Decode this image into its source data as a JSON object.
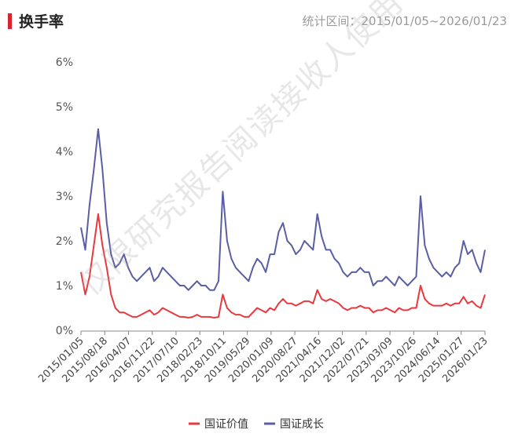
{
  "header": {
    "title": "换手率",
    "range": "统计区间：2015/01/05~2026/01/23"
  },
  "watermark": "仅限研究报告阅读接收人使用",
  "chart_data": {
    "type": "line",
    "title": "换手率",
    "xlabel": "",
    "ylabel": "",
    "ylim": [
      0,
      6
    ],
    "y_ticks": [
      "0%",
      "1%",
      "2%",
      "3%",
      "4%",
      "5%",
      "6%"
    ],
    "grid": false,
    "legend_position": "bottom",
    "x_tick_labels": [
      "2015/01/05",
      "2015/08/18",
      "2016/04/07",
      "2016/11/22",
      "2017/07/10",
      "2018/02/23",
      "2018/10/11",
      "2019/05/29",
      "2020/01/09",
      "2020/08/27",
      "2021/04/16",
      "2021/12/02",
      "2022/07/21",
      "2023/03/09",
      "2023/10/26",
      "2024/06/14",
      "2025/01/27",
      "2026/01/23"
    ],
    "series": [
      {
        "name": "国证价值",
        "color": "#e8393f",
        "values": [
          1.3,
          0.8,
          1.2,
          1.9,
          2.6,
          1.9,
          1.4,
          0.8,
          0.5,
          0.4,
          0.4,
          0.35,
          0.3,
          0.3,
          0.35,
          0.4,
          0.45,
          0.35,
          0.4,
          0.5,
          0.45,
          0.4,
          0.35,
          0.3,
          0.3,
          0.28,
          0.3,
          0.35,
          0.3,
          0.3,
          0.3,
          0.28,
          0.3,
          0.8,
          0.5,
          0.4,
          0.35,
          0.35,
          0.3,
          0.3,
          0.4,
          0.5,
          0.45,
          0.4,
          0.5,
          0.45,
          0.6,
          0.7,
          0.6,
          0.6,
          0.55,
          0.6,
          0.65,
          0.65,
          0.6,
          0.9,
          0.7,
          0.65,
          0.7,
          0.65,
          0.6,
          0.5,
          0.45,
          0.5,
          0.5,
          0.55,
          0.5,
          0.5,
          0.4,
          0.45,
          0.45,
          0.5,
          0.45,
          0.4,
          0.5,
          0.45,
          0.45,
          0.5,
          0.5,
          1.0,
          0.7,
          0.6,
          0.55,
          0.55,
          0.55,
          0.6,
          0.55,
          0.6,
          0.6,
          0.75,
          0.6,
          0.65,
          0.55,
          0.5,
          0.8
        ]
      },
      {
        "name": "国证成长",
        "color": "#5a5fa3",
        "values": [
          2.3,
          1.8,
          2.8,
          3.6,
          4.5,
          3.6,
          2.4,
          1.7,
          1.4,
          1.5,
          1.7,
          1.4,
          1.2,
          1.1,
          1.2,
          1.3,
          1.4,
          1.1,
          1.2,
          1.4,
          1.3,
          1.2,
          1.1,
          1.0,
          1.0,
          0.9,
          1.0,
          1.1,
          1.0,
          1.0,
          0.9,
          0.9,
          1.1,
          3.1,
          2.0,
          1.6,
          1.4,
          1.3,
          1.2,
          1.1,
          1.4,
          1.6,
          1.5,
          1.3,
          1.7,
          1.7,
          2.2,
          2.4,
          2.0,
          1.9,
          1.7,
          1.8,
          2.0,
          1.9,
          1.8,
          2.6,
          2.1,
          1.8,
          1.8,
          1.6,
          1.5,
          1.3,
          1.2,
          1.3,
          1.3,
          1.4,
          1.3,
          1.3,
          1.0,
          1.1,
          1.1,
          1.2,
          1.1,
          1.0,
          1.2,
          1.1,
          1.0,
          1.1,
          1.2,
          3.0,
          1.9,
          1.6,
          1.4,
          1.3,
          1.2,
          1.3,
          1.2,
          1.4,
          1.5,
          2.0,
          1.7,
          1.8,
          1.5,
          1.3,
          1.8
        ]
      }
    ]
  }
}
